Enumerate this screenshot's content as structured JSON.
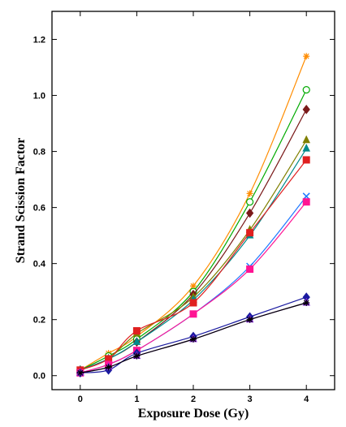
{
  "chart_data": {
    "type": "line",
    "xlabel": "Exposure Dose (Gy)",
    "ylabel": "Strand Scission Factor",
    "xlim": [
      -0.5,
      4.5
    ],
    "ylim": [
      -0.05,
      1.3
    ],
    "x_ticks": [
      0,
      1,
      2,
      3,
      4
    ],
    "y_ticks": [
      0.0,
      0.2,
      0.4,
      0.6,
      0.8,
      1.0,
      1.2
    ],
    "grid": false,
    "legend": "none",
    "series": [
      {
        "color": "#ff8c00",
        "marker": "star",
        "x": [
          0,
          0.5,
          1,
          2,
          3,
          4
        ],
        "y": [
          0.02,
          0.08,
          0.14,
          0.32,
          0.65,
          1.14
        ]
      },
      {
        "color": "#00aa00",
        "marker": "circle",
        "x": [
          0,
          0.5,
          1,
          2,
          3,
          4
        ],
        "y": [
          0.02,
          0.07,
          0.13,
          0.3,
          0.62,
          1.02
        ]
      },
      {
        "color": "#7b1a1a",
        "marker": "diamond",
        "x": [
          0,
          0.5,
          1,
          2,
          3,
          4
        ],
        "y": [
          0.02,
          0.06,
          0.12,
          0.29,
          0.58,
          0.95
        ]
      },
      {
        "color": "#808000",
        "marker": "triangle",
        "x": [
          0,
          0.5,
          1,
          2,
          3,
          4
        ],
        "y": [
          0.02,
          0.06,
          0.15,
          0.28,
          0.52,
          0.84
        ]
      },
      {
        "color": "#008b8b",
        "marker": "triangle",
        "x": [
          0,
          0.5,
          1,
          2,
          3,
          4
        ],
        "y": [
          0.02,
          0.06,
          0.12,
          0.27,
          0.5,
          0.81
        ]
      },
      {
        "color": "#e02020",
        "marker": "square",
        "x": [
          0,
          0.5,
          1,
          2,
          3,
          4
        ],
        "y": [
          0.02,
          0.06,
          0.16,
          0.26,
          0.51,
          0.77
        ]
      },
      {
        "color": "#1e78ff",
        "marker": "cross",
        "x": [
          0,
          0.5,
          1,
          2,
          3,
          4
        ],
        "y": [
          0.01,
          0.04,
          0.09,
          0.22,
          0.39,
          0.64
        ]
      },
      {
        "color": "#ff1493",
        "marker": "square",
        "x": [
          0,
          0.5,
          1,
          2,
          3,
          4
        ],
        "y": [
          0.01,
          0.04,
          0.09,
          0.22,
          0.38,
          0.62
        ]
      },
      {
        "color": "#1a1aa0",
        "marker": "diamond",
        "x": [
          0,
          0.5,
          1,
          2,
          3,
          4
        ],
        "y": [
          0.01,
          0.02,
          0.08,
          0.14,
          0.21,
          0.28
        ]
      },
      {
        "color": "#8a2be2",
        "marker": "triangle",
        "x": [
          0,
          0.5,
          1,
          2,
          3,
          4
        ],
        "y": [
          0.01,
          0.03,
          0.07,
          0.13,
          0.2,
          0.26
        ]
      },
      {
        "color": "#000000",
        "marker": "star",
        "x": [
          0,
          0.5,
          1,
          2,
          3,
          4
        ],
        "y": [
          0.01,
          0.03,
          0.07,
          0.13,
          0.2,
          0.26
        ]
      }
    ]
  }
}
